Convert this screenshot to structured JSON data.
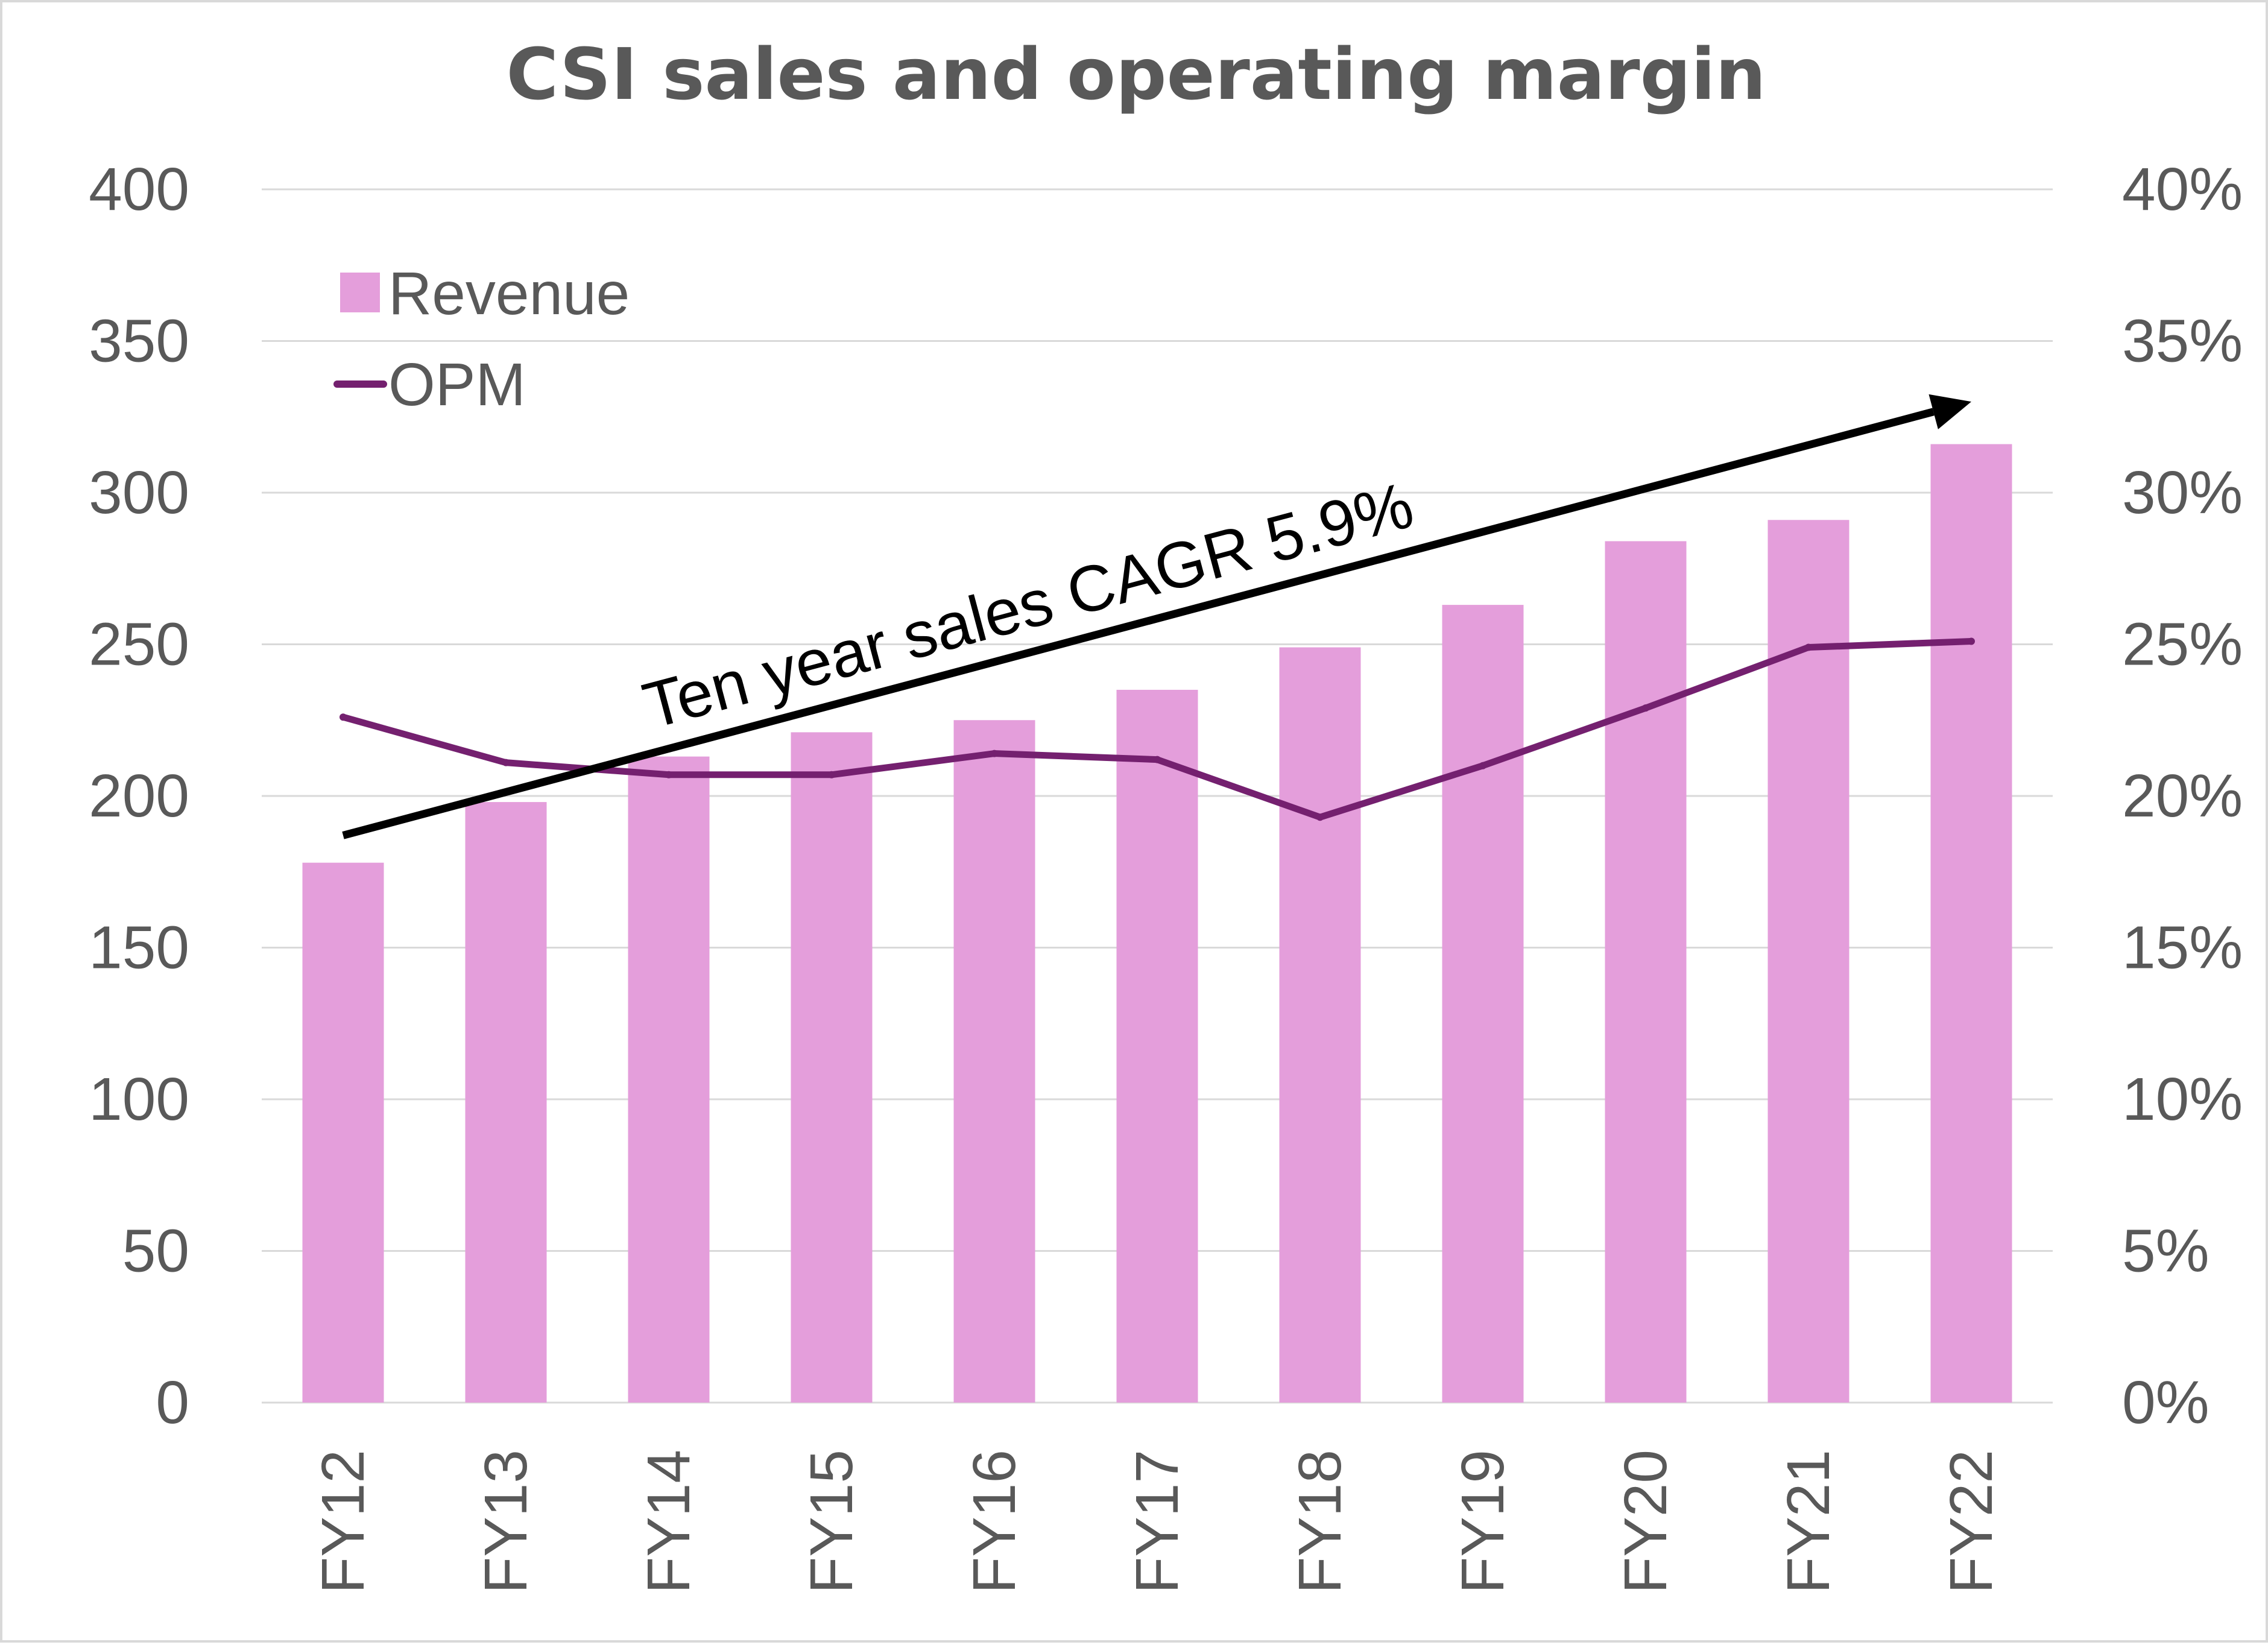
{
  "chart_data": {
    "type": "bar",
    "title": "CSI sales and operating margin",
    "categories": [
      "FY12",
      "FY13",
      "FY14",
      "FY15",
      "FY16",
      "FY17",
      "FY18",
      "FY19",
      "FY20",
      "FY21",
      "FY22"
    ],
    "series": [
      {
        "name": "Revenue",
        "type": "bar",
        "axis": "left",
        "color": "#e49edb",
        "values": [
          178,
          198,
          213,
          221,
          225,
          235,
          249,
          263,
          284,
          291,
          316
        ]
      },
      {
        "name": "OPM",
        "type": "line",
        "axis": "right",
        "color": "#74206f",
        "values": [
          0.226,
          0.211,
          0.207,
          0.207,
          0.214,
          0.212,
          0.193,
          0.21,
          0.229,
          0.249,
          0.251
        ]
      }
    ],
    "y_left": {
      "ylim": [
        0,
        400
      ],
      "ticks": [
        "0",
        "50",
        "100",
        "150",
        "200",
        "250",
        "300",
        "350",
        "400"
      ]
    },
    "y_right": {
      "ylim": [
        0,
        0.4
      ],
      "ticks": [
        "0%",
        "5%",
        "10%",
        "15%",
        "20%",
        "25%",
        "30%",
        "35%",
        "40%"
      ]
    },
    "grid": true,
    "legend_position": "top-left",
    "annotation": {
      "text": "Ten year sales CAGR 5.9%",
      "from": {
        "x": "FY12",
        "y": 187
      },
      "to": {
        "x": "FY22",
        "y": 330
      },
      "color": "#000000"
    }
  }
}
